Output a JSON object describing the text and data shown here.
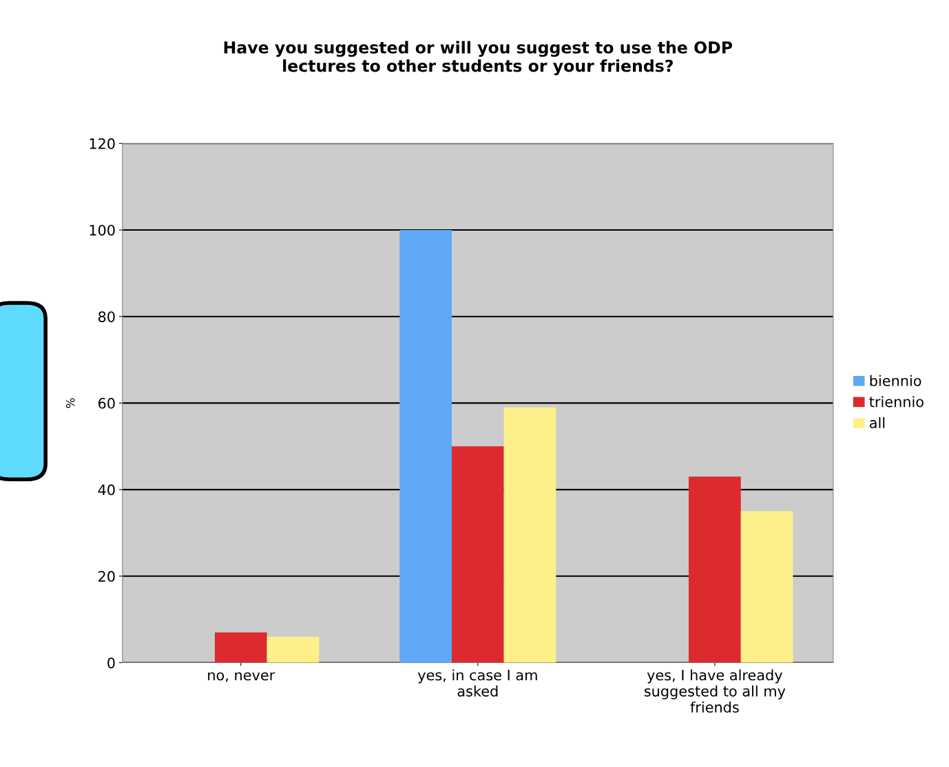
{
  "chart_data": {
    "type": "bar",
    "title": "Have you suggested or will you suggest to use the ODP\nlectures to other students or your friends?",
    "ylabel": "%",
    "categories": [
      "no, never",
      "yes, in case I am\nasked",
      "yes, I have already\nsuggested to all my\nfriends"
    ],
    "series": [
      {
        "name": "biennio",
        "color": "#5fa8f8",
        "values": [
          0,
          100,
          0
        ]
      },
      {
        "name": "triennio",
        "color": "#dc2a2e",
        "values": [
          7,
          50,
          43
        ]
      },
      {
        "name": "all",
        "color": "#fdf08b",
        "values": [
          6,
          59,
          35
        ]
      }
    ],
    "ylim": [
      0,
      120
    ],
    "yticks": [
      0,
      20,
      40,
      60,
      80,
      100,
      120
    ],
    "grid": "y",
    "legend": "right"
  }
}
